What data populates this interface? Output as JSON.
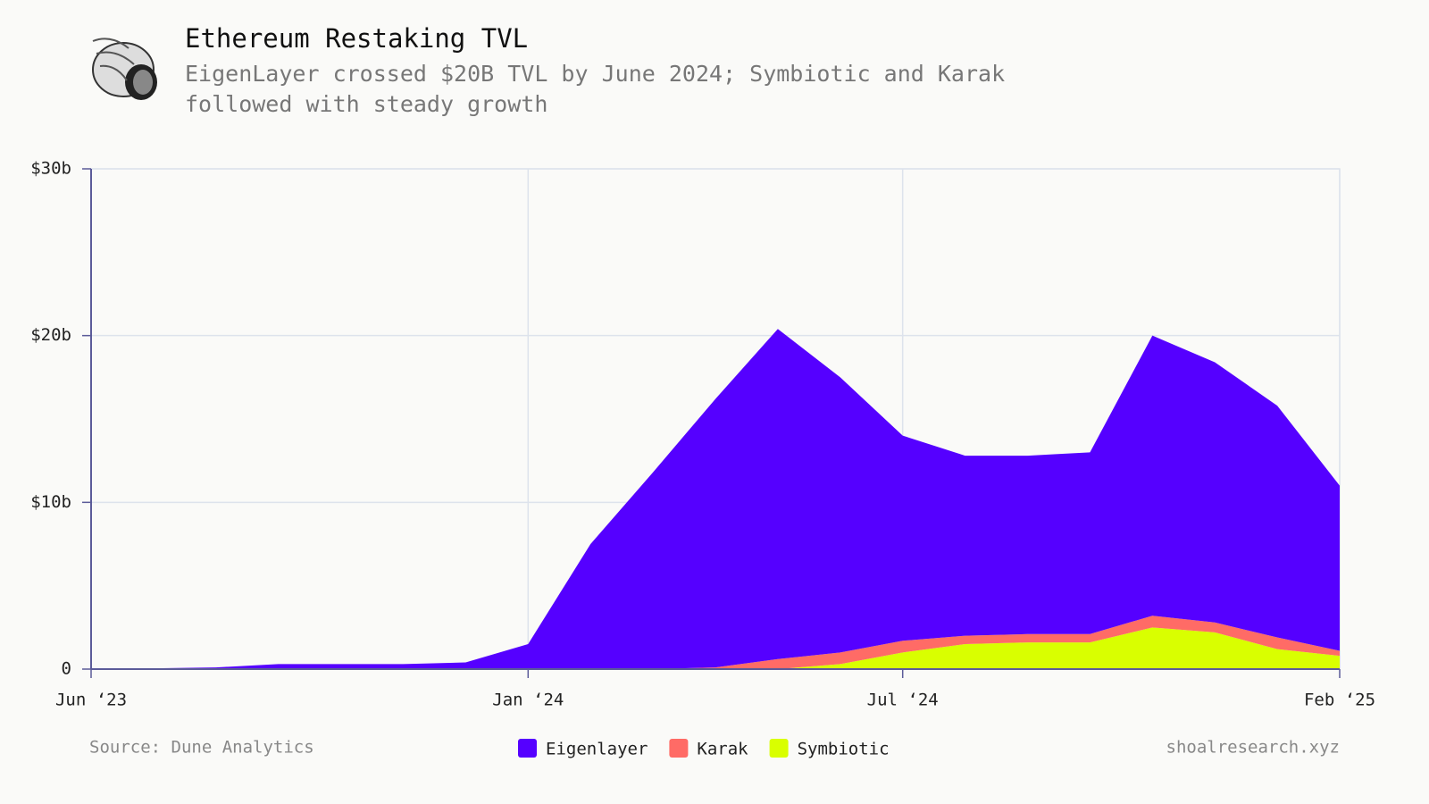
{
  "chart_data": {
    "type": "stacked_area",
    "title": "Ethereum Restaking TVL",
    "subtitle": "EigenLayer crossed $20B TVL by June 2024; Symbiotic and Karak followed with steady growth",
    "source": "Source: Dune Analytics",
    "credit": "shoalresearch.xyz",
    "x": [
      "2023-06",
      "2023-07",
      "2023-08",
      "2023-09",
      "2023-10",
      "2023-11",
      "2023-12",
      "2024-01",
      "2024-02",
      "2024-03",
      "2024-04",
      "2024-05",
      "2024-06",
      "2024-07",
      "2024-08",
      "2024-09",
      "2024-10",
      "2024-11",
      "2024-12",
      "2025-01",
      "2025-02"
    ],
    "series": [
      {
        "name": "Eigenlayer",
        "color": "#5500ff",
        "values": [
          0,
          0.05,
          0.1,
          0.3,
          0.3,
          0.3,
          0.4,
          1.5,
          7.5,
          11.8,
          16.1,
          19.8,
          16.5,
          12.3,
          10.8,
          10.7,
          10.9,
          16.8,
          15.6,
          13.9,
          9.9
        ]
      },
      {
        "name": "Karak",
        "color": "#ff6b66",
        "values": [
          0,
          0,
          0,
          0,
          0,
          0,
          0,
          0,
          0,
          0,
          0.1,
          0.6,
          0.7,
          0.7,
          0.5,
          0.5,
          0.5,
          0.7,
          0.6,
          0.7,
          0.3
        ]
      },
      {
        "name": "Symbiotic",
        "color": "#d9ff00",
        "values": [
          0,
          0,
          0,
          0,
          0,
          0,
          0,
          0,
          0,
          0,
          0,
          0,
          0.3,
          1.0,
          1.5,
          1.6,
          1.6,
          2.5,
          2.2,
          1.2,
          0.8
        ]
      }
    ],
    "stacked": true,
    "xlim": [
      "2023-06",
      "2025-02"
    ],
    "xticks": [
      {
        "value": "2023-06",
        "label": "Jun ‘23"
      },
      {
        "value": "2024-01",
        "label": "Jan ‘24"
      },
      {
        "value": "2024-07",
        "label": "Jul ‘24"
      },
      {
        "value": "2025-02",
        "label": "Feb ‘25"
      }
    ],
    "ylim": [
      0,
      30
    ],
    "yticks": [
      0,
      {
        "value": 10,
        "label": "$10b"
      },
      {
        "value": 20,
        "label": "$20b"
      },
      {
        "value": 30,
        "label": "$30b"
      }
    ],
    "grid": true
  }
}
